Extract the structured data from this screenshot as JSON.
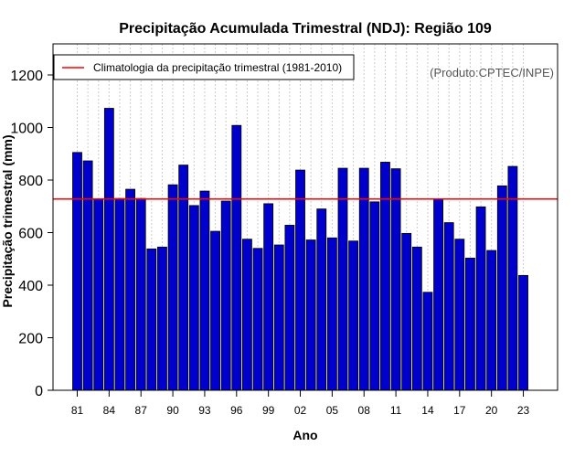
{
  "chart_data": {
    "type": "bar",
    "title": "Precipitação Acumulada Trimestral (NDJ): Região 109",
    "xlabel": "Ano",
    "ylabel": "Precipitação trimestral (mm)",
    "ylim": [
      0,
      1200
    ],
    "yticks": [
      0,
      200,
      400,
      600,
      800,
      1000,
      1200
    ],
    "categories": [
      "81",
      "82",
      "83",
      "84",
      "85",
      "86",
      "87",
      "88",
      "89",
      "90",
      "91",
      "92",
      "93",
      "94",
      "95",
      "96",
      "97",
      "98",
      "99",
      "00",
      "01",
      "02",
      "03",
      "04",
      "05",
      "06",
      "07",
      "08",
      "09",
      "10",
      "11",
      "12",
      "13",
      "14",
      "15",
      "16",
      "17",
      "18",
      "19",
      "20",
      "21",
      "22",
      "23"
    ],
    "values": [
      905,
      873,
      728,
      1073,
      730,
      765,
      730,
      538,
      545,
      782,
      857,
      703,
      758,
      605,
      720,
      1008,
      575,
      540,
      710,
      553,
      628,
      838,
      572,
      690,
      580,
      845,
      568,
      845,
      717,
      868,
      843,
      597,
      545,
      373,
      727,
      638,
      575,
      503,
      698,
      532,
      778,
      852,
      437
    ],
    "xtick_labels": [
      "81",
      "84",
      "87",
      "90",
      "93",
      "96",
      "99",
      "02",
      "05",
      "08",
      "11",
      "14",
      "17",
      "20",
      "23"
    ],
    "climatology": 728,
    "legend": {
      "label": "Climatologia da precipitação trimestral (1981-2010)",
      "position": "top-left"
    },
    "bar_color": "#0000cc",
    "line_color": "#ff0000",
    "grid": "vertical-dotted",
    "credit": "(Produto:CPTEC/INPE)"
  }
}
